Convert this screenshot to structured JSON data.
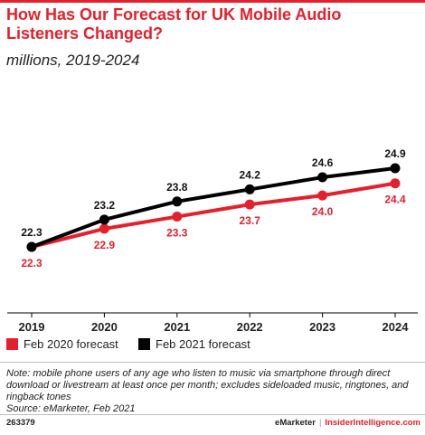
{
  "header": {
    "title": "How Has Our Forecast for UK Mobile Audio Listeners Changed?",
    "subtitle": "millions, 2019-2024"
  },
  "colors": {
    "accent": "#e4202c",
    "series_2020": "#e4202c",
    "series_2021": "#000000"
  },
  "chart_data": {
    "type": "line",
    "title": "How Has Our Forecast for UK Mobile Audio Listeners Changed?",
    "subtitle": "millions, 2019-2024",
    "x": [
      "2019",
      "2020",
      "2021",
      "2022",
      "2023",
      "2024"
    ],
    "series": [
      {
        "name": "Feb 2020 forecast",
        "color": "#e4202c",
        "values": [
          22.3,
          22.9,
          23.3,
          23.7,
          24.0,
          24.4
        ]
      },
      {
        "name": "Feb 2021 forecast",
        "color": "#000000",
        "values": [
          22.3,
          23.2,
          23.8,
          24.2,
          24.6,
          24.9
        ]
      }
    ],
    "legend_position": "bottom-left",
    "grid": false
  },
  "legend": {
    "items": [
      {
        "label": "Feb 2020 forecast",
        "color": "#e4202c"
      },
      {
        "label": "Feb 2021 forecast",
        "color": "#000000"
      }
    ]
  },
  "note": {
    "lines": [
      "Note: mobile phone users of any age who listen to music via smartphone through direct",
      "download or livestream at least once per month; excludes sideloaded music, ringtones, and",
      "ringback tones",
      "Source: eMarketer, Feb 2021"
    ]
  },
  "footer": {
    "id": "263379",
    "brand": "eMarketer",
    "site": "InsiderIntelligence.com"
  }
}
